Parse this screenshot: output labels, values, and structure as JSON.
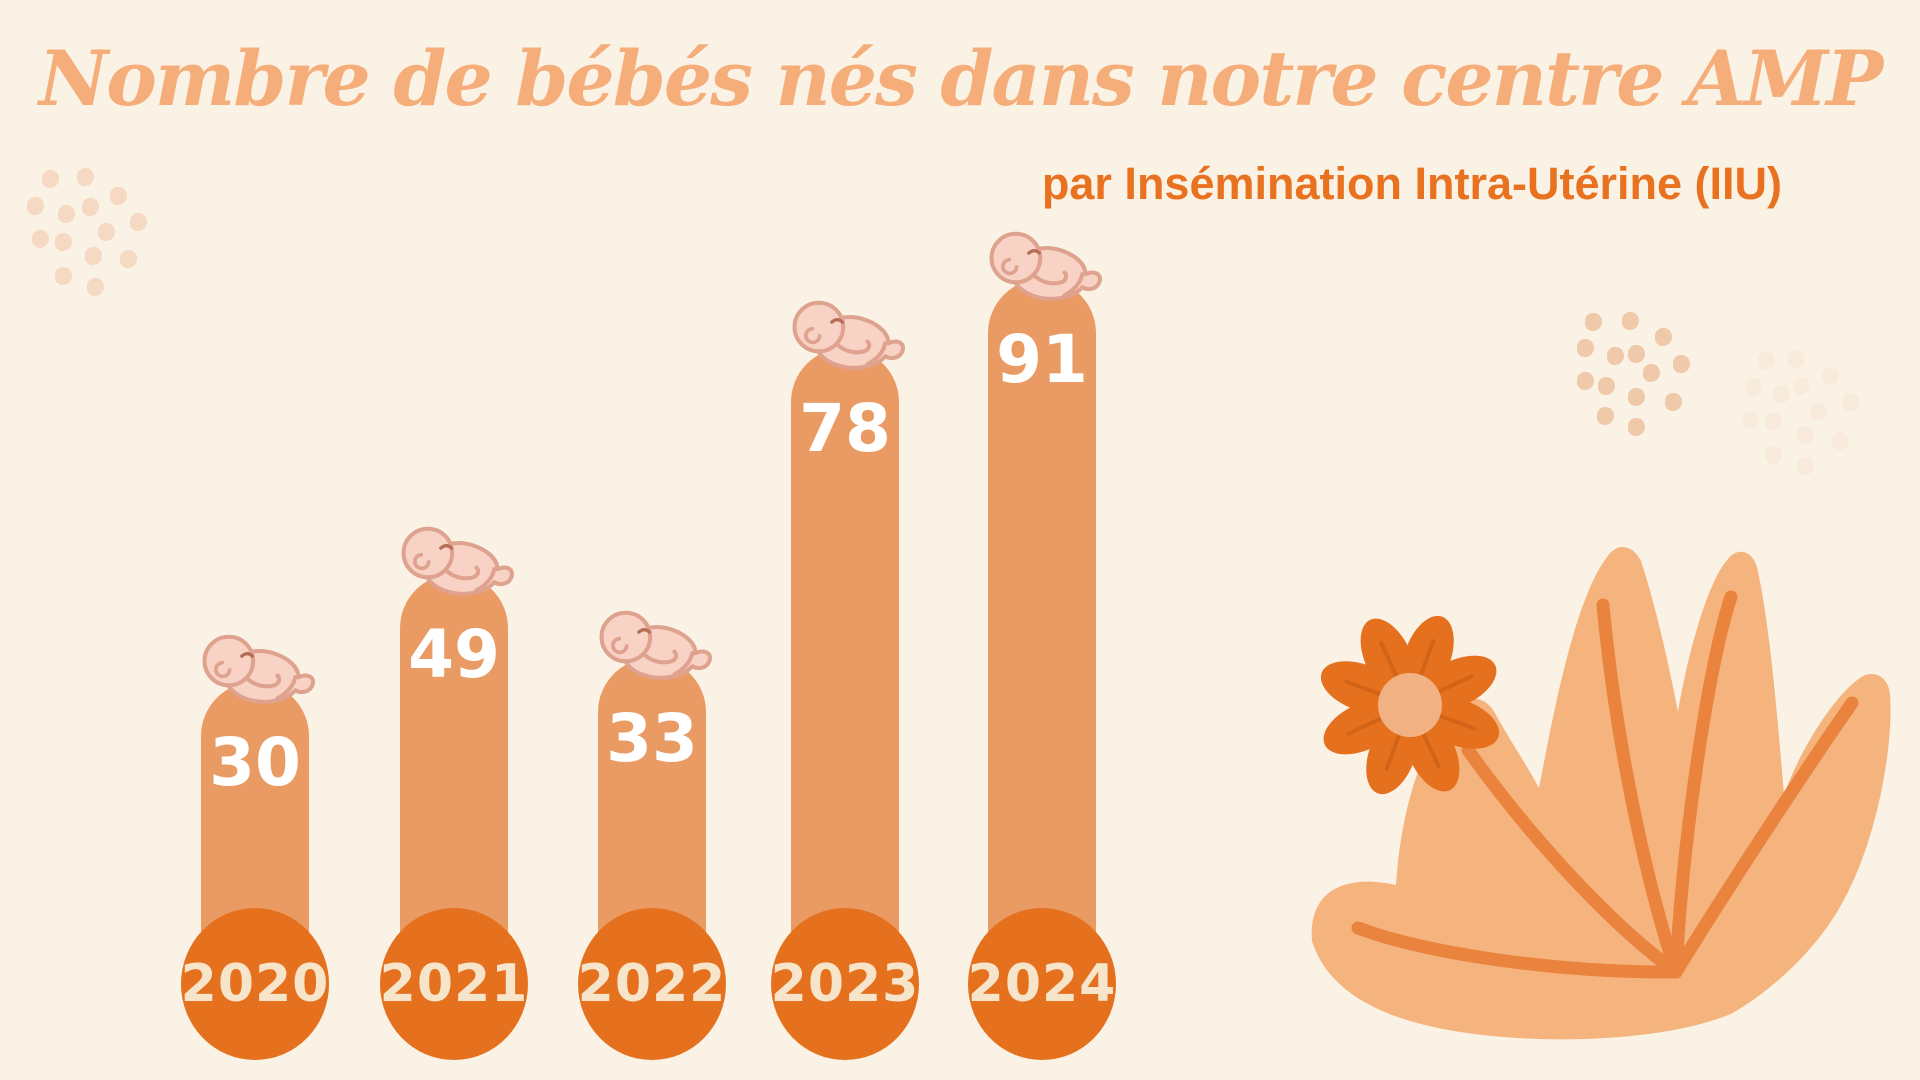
{
  "title": "Nombre de bébés nés dans notre centre AMP",
  "subtitle": "par Insémination Intra-Utérine (IIU)",
  "chart_data": {
    "type": "bar",
    "title": "Nombre de bébés nés dans notre centre AMP",
    "subtitle": "par Insémination Intra-Utérine (IIU)",
    "categories": [
      "2020",
      "2021",
      "2022",
      "2023",
      "2024"
    ],
    "values": [
      30,
      49,
      33,
      78,
      91
    ],
    "xlabel": "",
    "ylabel": "",
    "ylim": [
      0,
      100
    ],
    "grid": false,
    "legend": false,
    "bar_label_position": "inside-top",
    "category_label_style": "orange circle badge at bar base",
    "decoration": "sleeping newborn illustration on top of each bar"
  },
  "colors": {
    "background": "#FBF2E6",
    "title_text": "#F5AD79",
    "subtitle_text": "#E8721F",
    "bar_fill": "#E99B63",
    "value_text": "#FFFFFF",
    "year_circle": "#E5701E",
    "year_text": "#F7E5CB",
    "baby_skin": "#F8D2C4",
    "baby_outline": "#DEA28E",
    "plant_leaf": "#F5B47D",
    "plant_vein": "#E9833D",
    "flower_petal": "#E5701E",
    "flower_center": "#F2B183",
    "dots_top_left": "#F5D9C2",
    "dots_right_tan": "#EFC9A9",
    "dots_right_cream": "#F8EBDC"
  }
}
